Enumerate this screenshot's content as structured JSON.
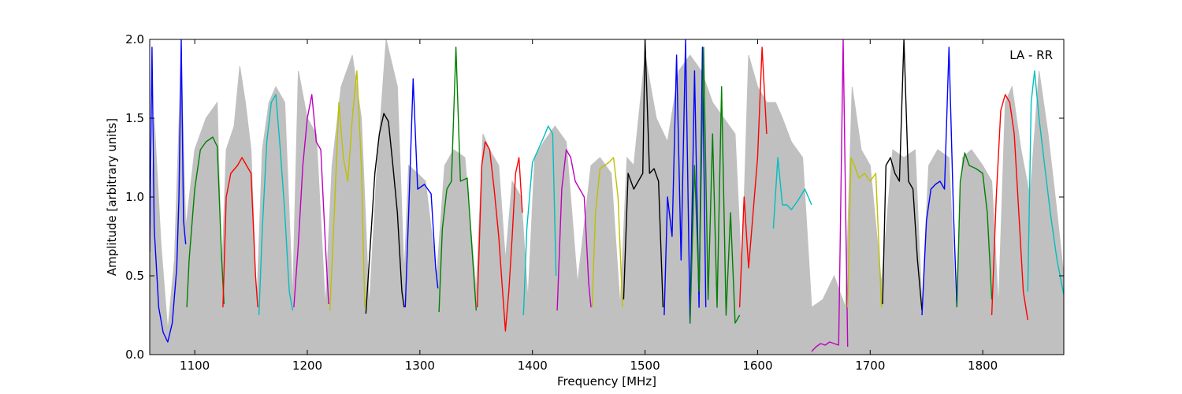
{
  "chart_data": {
    "type": "line",
    "xlabel": "Frequency [MHz]",
    "ylabel": "Amplitude [arbitrary units]",
    "annotation": "LA - RR",
    "xlim": [
      1060,
      1872
    ],
    "ylim": [
      0.0,
      2.0
    ],
    "x_ticks": [
      1100,
      1200,
      1300,
      1400,
      1500,
      1600,
      1700,
      1800
    ],
    "x_tick_labels": [
      "1100",
      "1200",
      "1300",
      "1400",
      "1500",
      "1600",
      "1700",
      "1800"
    ],
    "y_ticks": [
      0.0,
      0.5,
      1.0,
      1.5,
      2.0
    ],
    "y_tick_labels": [
      "0.0",
      "0.5",
      "1.0",
      "1.5",
      "2.0"
    ],
    "grid": false,
    "background": {
      "color": "#c0c0c0",
      "x": [
        1060,
        1064,
        1070,
        1076,
        1082,
        1088,
        1092,
        1100,
        1110,
        1120,
        1124,
        1128,
        1135,
        1140,
        1145,
        1150,
        1155,
        1160,
        1166,
        1172,
        1180,
        1187,
        1192,
        1200,
        1208,
        1216,
        1222,
        1230,
        1240,
        1248,
        1255,
        1262,
        1270,
        1280,
        1286,
        1290,
        1298,
        1305,
        1315,
        1322,
        1330,
        1340,
        1350,
        1356,
        1362,
        1370,
        1376,
        1382,
        1390,
        1396,
        1402,
        1410,
        1420,
        1430,
        1440,
        1452,
        1460,
        1470,
        1478,
        1484,
        1490,
        1500,
        1510,
        1520,
        1530,
        1540,
        1550,
        1560,
        1570,
        1580,
        1586,
        1592,
        1600,
        1608,
        1616,
        1622,
        1630,
        1640,
        1648,
        1658,
        1668,
        1678,
        1684,
        1692,
        1700,
        1710,
        1720,
        1730,
        1740,
        1746,
        1752,
        1760,
        1770,
        1776,
        1782,
        1790,
        1800,
        1808,
        1814,
        1820,
        1826,
        1834,
        1842,
        1850,
        1858,
        1866,
        1872
      ],
      "y": [
        0.6,
        1.5,
        0.7,
        0.15,
        0.6,
        1.9,
        0.8,
        1.3,
        1.5,
        1.6,
        0.5,
        1.3,
        1.45,
        1.83,
        1.6,
        1.3,
        0.3,
        1.3,
        1.6,
        1.7,
        1.6,
        0.35,
        1.8,
        1.5,
        1.4,
        0.3,
        1.2,
        1.7,
        1.9,
        1.5,
        0.3,
        1.2,
        2.0,
        1.7,
        0.5,
        1.2,
        1.15,
        1.1,
        0.5,
        1.2,
        1.3,
        1.25,
        0.4,
        1.4,
        1.3,
        1.2,
        0.6,
        1.1,
        1.0,
        0.35,
        1.25,
        1.35,
        1.45,
        1.35,
        0.45,
        1.2,
        1.25,
        1.15,
        0.3,
        1.25,
        1.2,
        1.9,
        1.5,
        1.35,
        1.8,
        1.9,
        1.8,
        1.6,
        1.5,
        1.4,
        0.5,
        1.9,
        1.7,
        1.6,
        1.6,
        1.5,
        1.35,
        1.25,
        0.3,
        0.35,
        0.5,
        0.3,
        1.7,
        1.3,
        1.2,
        0.45,
        1.3,
        1.25,
        1.3,
        0.3,
        1.2,
        1.3,
        1.25,
        0.3,
        1.25,
        1.3,
        1.2,
        1.1,
        0.3,
        1.6,
        1.7,
        1.3,
        1.0,
        1.8,
        1.4,
        0.9,
        0.5
      ]
    },
    "series": [
      {
        "color": "#0000ff",
        "x": [
          1060,
          1062,
          1064,
          1068,
          1072,
          1076,
          1080,
          1084,
          1086,
          1088,
          1090,
          1092
        ],
        "y": [
          0.65,
          1.95,
          0.8,
          0.3,
          0.14,
          0.08,
          0.2,
          0.55,
          1.0,
          2.0,
          0.85,
          0.7
        ]
      },
      {
        "color": "#008000",
        "x": [
          1093,
          1095,
          1100,
          1105,
          1110,
          1116,
          1120,
          1124,
          1126
        ],
        "y": [
          0.3,
          0.6,
          1.05,
          1.3,
          1.35,
          1.38,
          1.32,
          0.6,
          0.32
        ]
      },
      {
        "color": "#ff0000",
        "x": [
          1125,
          1128,
          1132,
          1138,
          1142,
          1146,
          1150,
          1154,
          1156
        ],
        "y": [
          0.3,
          1.0,
          1.15,
          1.2,
          1.25,
          1.2,
          1.15,
          0.5,
          0.3
        ]
      },
      {
        "color": "#00bfbf",
        "x": [
          1157,
          1160,
          1164,
          1168,
          1172,
          1176,
          1180,
          1184,
          1187
        ],
        "y": [
          0.25,
          0.8,
          1.35,
          1.6,
          1.65,
          1.3,
          0.9,
          0.4,
          0.28
        ]
      },
      {
        "color": "#bf00bf",
        "x": [
          1188,
          1192,
          1196,
          1200,
          1204,
          1208,
          1212,
          1216,
          1219
        ],
        "y": [
          0.3,
          0.7,
          1.2,
          1.5,
          1.65,
          1.35,
          1.3,
          0.7,
          0.32
        ]
      },
      {
        "color": "#bfbf00",
        "x": [
          1220,
          1224,
          1228,
          1232,
          1236,
          1240,
          1244,
          1248,
          1251
        ],
        "y": [
          0.28,
          0.9,
          1.6,
          1.25,
          1.1,
          1.5,
          1.8,
          1.2,
          0.3
        ]
      },
      {
        "color": "#000000",
        "x": [
          1252,
          1256,
          1260,
          1264,
          1268,
          1272,
          1276,
          1280,
          1284,
          1286
        ],
        "y": [
          0.26,
          0.7,
          1.15,
          1.4,
          1.53,
          1.48,
          1.2,
          0.9,
          0.4,
          0.3
        ]
      },
      {
        "color": "#0000ff",
        "x": [
          1287,
          1290,
          1294,
          1298,
          1304,
          1310,
          1314,
          1316
        ],
        "y": [
          0.3,
          0.9,
          1.75,
          1.05,
          1.08,
          1.02,
          0.55,
          0.42
        ]
      },
      {
        "color": "#008000",
        "x": [
          1317,
          1320,
          1324,
          1328,
          1332,
          1336,
          1342,
          1346,
          1350
        ],
        "y": [
          0.27,
          0.8,
          1.05,
          1.1,
          1.95,
          1.1,
          1.12,
          0.7,
          0.28
        ]
      },
      {
        "color": "#ff0000",
        "x": [
          1351,
          1355,
          1358,
          1362,
          1366,
          1370,
          1373,
          1376,
          1379,
          1382,
          1385,
          1388,
          1391
        ],
        "y": [
          0.3,
          1.2,
          1.35,
          1.3,
          1.05,
          0.75,
          0.45,
          0.15,
          0.4,
          0.75,
          1.15,
          1.25,
          0.9
        ]
      },
      {
        "color": "#00bfbf",
        "x": [
          1392,
          1395,
          1400,
          1405,
          1410,
          1414,
          1418,
          1421
        ],
        "y": [
          0.25,
          0.8,
          1.22,
          1.3,
          1.38,
          1.45,
          1.4,
          0.5
        ]
      },
      {
        "color": "#bf00bf",
        "x": [
          1422,
          1426,
          1430,
          1434,
          1438,
          1442,
          1446,
          1450,
          1452
        ],
        "y": [
          0.28,
          1.05,
          1.3,
          1.25,
          1.1,
          1.05,
          1.0,
          0.45,
          0.3
        ]
      },
      {
        "color": "#bfbf00",
        "x": [
          1453,
          1456,
          1460,
          1464,
          1468,
          1472,
          1476,
          1480
        ],
        "y": [
          0.3,
          0.9,
          1.18,
          1.2,
          1.22,
          1.25,
          1.0,
          0.3
        ]
      },
      {
        "color": "#000000",
        "x": [
          1481,
          1485,
          1490,
          1494,
          1498,
          1500,
          1504,
          1508,
          1512,
          1516
        ],
        "y": [
          0.35,
          1.15,
          1.05,
          1.1,
          1.15,
          2.0,
          1.15,
          1.18,
          1.1,
          0.3
        ]
      },
      {
        "color": "#0000ff",
        "x": [
          1517,
          1520,
          1524,
          1528,
          1532,
          1536,
          1540,
          1544,
          1548,
          1551,
          1554
        ],
        "y": [
          0.25,
          1.0,
          0.75,
          1.9,
          0.6,
          2.0,
          0.2,
          1.8,
          0.3,
          1.95,
          0.3
        ]
      },
      {
        "color": "#008000",
        "x": [
          1540,
          1544,
          1548,
          1552,
          1556,
          1560,
          1564,
          1568,
          1572,
          1576,
          1580,
          1584
        ],
        "y": [
          0.2,
          1.2,
          0.4,
          1.95,
          0.35,
          1.4,
          0.3,
          1.7,
          0.25,
          0.9,
          0.2,
          0.25
        ]
      },
      {
        "color": "#ff0000",
        "x": [
          1584,
          1588,
          1592,
          1596,
          1600,
          1604,
          1608
        ],
        "y": [
          0.3,
          1.0,
          0.55,
          0.9,
          1.25,
          1.95,
          1.4
        ]
      },
      {
        "color": "#00bfbf",
        "x": [
          1614,
          1618,
          1622,
          1626,
          1630,
          1636,
          1642,
          1648
        ],
        "y": [
          0.8,
          1.25,
          0.95,
          0.95,
          0.92,
          0.98,
          1.05,
          0.95
        ]
      },
      {
        "color": "#bf00bf",
        "x": [
          1648,
          1652,
          1656,
          1660,
          1664,
          1668,
          1672,
          1676,
          1680
        ],
        "y": [
          0.02,
          0.05,
          0.07,
          0.06,
          0.08,
          0.07,
          0.06,
          2.0,
          0.05
        ]
      },
      {
        "color": "#bfbf00",
        "x": [
          1680,
          1683,
          1686,
          1690,
          1695,
          1700,
          1705,
          1710
        ],
        "y": [
          0.3,
          1.25,
          1.2,
          1.12,
          1.15,
          1.1,
          1.15,
          0.3
        ]
      },
      {
        "color": "#000000",
        "x": [
          1711,
          1714,
          1718,
          1722,
          1726,
          1730,
          1734,
          1738,
          1742,
          1746
        ],
        "y": [
          0.32,
          1.2,
          1.25,
          1.15,
          1.1,
          2.0,
          1.1,
          1.05,
          0.6,
          0.28
        ]
      },
      {
        "color": "#0000ff",
        "x": [
          1746,
          1750,
          1754,
          1758,
          1762,
          1766,
          1770,
          1774,
          1777
        ],
        "y": [
          0.25,
          0.85,
          1.05,
          1.08,
          1.1,
          1.05,
          1.95,
          0.9,
          0.3
        ]
      },
      {
        "color": "#008000",
        "x": [
          1777,
          1780,
          1784,
          1788,
          1794,
          1800,
          1804,
          1808
        ],
        "y": [
          0.3,
          1.1,
          1.28,
          1.2,
          1.18,
          1.15,
          0.9,
          0.35
        ]
      },
      {
        "color": "#ff0000",
        "x": [
          1808,
          1812,
          1816,
          1820,
          1824,
          1828,
          1832,
          1836,
          1840
        ],
        "y": [
          0.25,
          1.0,
          1.55,
          1.65,
          1.6,
          1.4,
          0.9,
          0.4,
          0.22
        ]
      },
      {
        "color": "#00bfbf",
        "x": [
          1840,
          1843,
          1846,
          1850,
          1855,
          1860,
          1866,
          1872
        ],
        "y": [
          0.4,
          1.6,
          1.8,
          1.5,
          1.2,
          0.9,
          0.6,
          0.38
        ]
      }
    ]
  }
}
